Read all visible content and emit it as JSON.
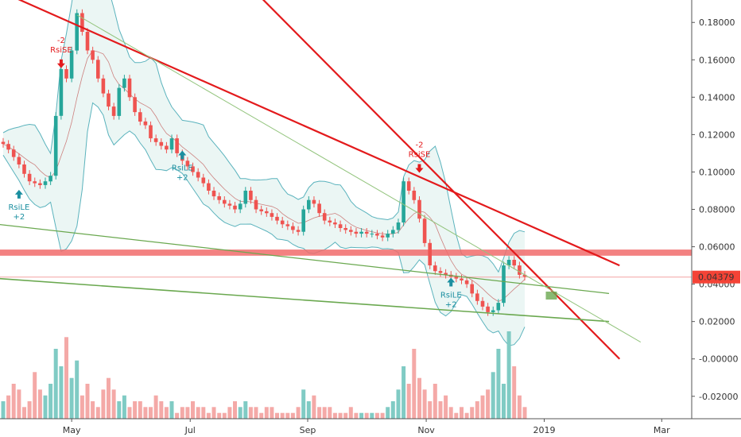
{
  "chart_data": {
    "type": "candlestick",
    "x_labels": [
      "May",
      "Jul",
      "Sep",
      "Nov",
      "2019",
      "Mar"
    ],
    "y_ticks": [
      "0.18000",
      "0.16000",
      "0.14000",
      "0.12000",
      "0.10000",
      "0.08000",
      "0.06000",
      "0.04000",
      "0.02000",
      "-0.00000",
      "-0.02000"
    ],
    "ylim": [
      -0.032,
      0.192
    ],
    "last_price_label": "0.04379",
    "last_price": 0.04379,
    "price_series": [
      0.115,
      0.112,
      0.108,
      0.104,
      0.099,
      0.095,
      0.094,
      0.093,
      0.095,
      0.098,
      0.13,
      0.155,
      0.15,
      0.165,
      0.185,
      0.175,
      0.165,
      0.16,
      0.15,
      0.142,
      0.135,
      0.13,
      0.145,
      0.15,
      0.14,
      0.132,
      0.127,
      0.125,
      0.118,
      0.116,
      0.114,
      0.112,
      0.118,
      0.11,
      0.106,
      0.103,
      0.1,
      0.097,
      0.094,
      0.09,
      0.087,
      0.085,
      0.083,
      0.082,
      0.08,
      0.083,
      0.09,
      0.085,
      0.08,
      0.079,
      0.078,
      0.076,
      0.074,
      0.072,
      0.071,
      0.069,
      0.068,
      0.08,
      0.085,
      0.083,
      0.078,
      0.074,
      0.073,
      0.072,
      0.07,
      0.069,
      0.068,
      0.067,
      0.068,
      0.067,
      0.067,
      0.066,
      0.065,
      0.067,
      0.069,
      0.073,
      0.095,
      0.09,
      0.085,
      0.075,
      0.062,
      0.05,
      0.047,
      0.046,
      0.045,
      0.044,
      0.043,
      0.042,
      0.04,
      0.035,
      0.031,
      0.028,
      0.025,
      0.026,
      0.03,
      0.05,
      0.053,
      0.05,
      0.045,
      0.044
    ],
    "volume_series": [
      3,
      4,
      6,
      5,
      2,
      3,
      8,
      5,
      4,
      6,
      12,
      9,
      14,
      7,
      10,
      4,
      6,
      3,
      2,
      5,
      7,
      5,
      3,
      4,
      2,
      3,
      3,
      2,
      2,
      4,
      3,
      2,
      3,
      1,
      2,
      2,
      3,
      2,
      2,
      1,
      2,
      1,
      1,
      2,
      3,
      2,
      3,
      2,
      2,
      1,
      2,
      2,
      1,
      1,
      1,
      1,
      2,
      5,
      3,
      4,
      2,
      2,
      2,
      1,
      1,
      1,
      2,
      1,
      1,
      1,
      1,
      1,
      1,
      2,
      3,
      5,
      9,
      6,
      12,
      7,
      5,
      3,
      6,
      3,
      4,
      2,
      1,
      2,
      1,
      2,
      3,
      4,
      5,
      8,
      12,
      6,
      15,
      9,
      4,
      2
    ],
    "resistance_zone": [
      0.0552,
      0.0585
    ],
    "signals": [
      {
        "label": "RsiLE",
        "value": "+2"
      },
      {
        "label": "RsiLE",
        "value": "+2"
      },
      {
        "label": "RsiLE",
        "value": "+2"
      },
      {
        "label": "RsiSE",
        "value": "-2"
      },
      {
        "label": "RsiSE",
        "value": "-2"
      }
    ],
    "colors": {
      "up": "#26a69a",
      "down": "#ef5350",
      "upVol": "#80cbc4",
      "downVol": "#f4a9a7",
      "band": "#5bb3bd",
      "bandFill": "#e6f4f1",
      "trendRed": "#e31a1c",
      "trendGreen": "#6aa84f",
      "zone": "#f16b6b",
      "priceTag": "#f44336"
    }
  }
}
